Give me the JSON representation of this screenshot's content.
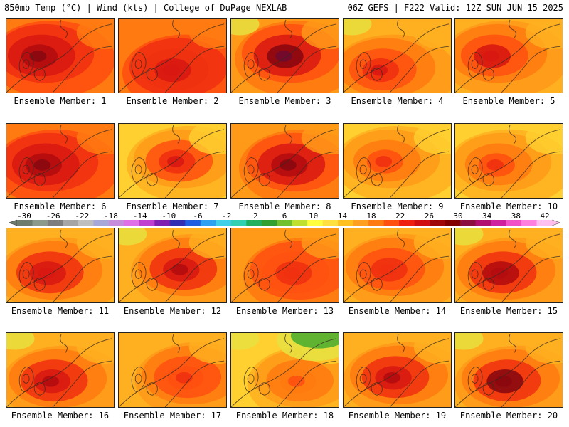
{
  "header": {
    "left_title": "850mb Temp (°C) | Wind (kts) | College of DuPage NEXLAB",
    "right_title": "06Z GEFS | F222 Valid: 12Z SUN JUN 15 2025"
  },
  "members": [
    {
      "label": "Ensemble Member: 1",
      "base": 24,
      "hot": 30,
      "cool": 0
    },
    {
      "label": "Ensemble Member: 2",
      "base": 24,
      "hot": 27,
      "cool": 0
    },
    {
      "label": "Ensemble Member: 3",
      "base": 23,
      "hot": 32,
      "cool": 1
    },
    {
      "label": "Ensemble Member: 4",
      "base": 21,
      "hot": 26,
      "cool": 1
    },
    {
      "label": "Ensemble Member: 5",
      "base": 20,
      "hot": 27,
      "cool": 0
    },
    {
      "label": "Ensemble Member: 6",
      "base": 24,
      "hot": 30,
      "cool": 0
    },
    {
      "label": "Ensemble Member: 7",
      "base": 19,
      "hot": 26,
      "cool": 0
    },
    {
      "label": "Ensemble Member: 8",
      "base": 22,
      "hot": 30,
      "cool": 0
    },
    {
      "label": "Ensemble Member: 9",
      "base": 19,
      "hot": 24,
      "cool": 0
    },
    {
      "label": "Ensemble Member: 10",
      "base": 18,
      "hot": 24,
      "cool": 0
    },
    {
      "label": "Ensemble Member: 11",
      "base": 21,
      "hot": 27,
      "cool": 0
    },
    {
      "label": "Ensemble Member: 12",
      "base": 21,
      "hot": 28,
      "cool": 1
    },
    {
      "label": "Ensemble Member: 13",
      "base": 22,
      "hot": 25,
      "cool": 0
    },
    {
      "label": "Ensemble Member: 14",
      "base": 21,
      "hot": 25,
      "cool": 0
    },
    {
      "label": "Ensemble Member: 15",
      "base": 21,
      "hot": 29,
      "cool": 1
    },
    {
      "label": "Ensemble Member: 16",
      "base": 21,
      "hot": 28,
      "cool": 1
    },
    {
      "label": "Ensemble Member: 17",
      "base": 20,
      "hot": 24,
      "cool": 0
    },
    {
      "label": "Ensemble Member: 18",
      "base": 19,
      "hot": 22,
      "cool": 2
    },
    {
      "label": "Ensemble Member: 19",
      "base": 21,
      "hot": 28,
      "cool": 0
    },
    {
      "label": "Ensemble Member: 20",
      "base": 20,
      "hot": 31,
      "cool": 1
    }
  ],
  "colorbar": {
    "tick_labels": [
      "-30",
      "-26",
      "-22",
      "-18",
      "-14",
      "-10",
      "-6",
      "-2",
      "2",
      "6",
      "10",
      "14",
      "18",
      "22",
      "26",
      "30",
      "34",
      "38",
      "42"
    ],
    "colors": [
      "#6e7c6e",
      "#8c9a8c",
      "#7d7d7d",
      "#a5a5a5",
      "#bfbfbf",
      "#a8a8d8",
      "#c78cdb",
      "#e070e8",
      "#c040d0",
      "#8020b0",
      "#3030b0",
      "#2060e0",
      "#30a0f0",
      "#40d0e8",
      "#30d0b0",
      "#20b060",
      "#30a030",
      "#70c030",
      "#c0e030",
      "#ffff40",
      "#ffe040",
      "#ffc020",
      "#ffa020",
      "#ff7a10",
      "#ff5010",
      "#f02010",
      "#d01010",
      "#a00808",
      "#800000",
      "#8a1040",
      "#b01070",
      "#d020a0",
      "#f050c8",
      "#ff80e0",
      "#ffc0f0"
    ]
  },
  "palette": {
    "t14": "#ffd030",
    "t16": "#ffb020",
    "t18": "#ff9a18",
    "t20": "#ff7a10",
    "t22": "#ff5010",
    "t24": "#f03010",
    "t26": "#d81812",
    "t28": "#b40c10",
    "t30": "#8a0810",
    "t32": "#700a30",
    "cool1": "#e8e040",
    "cool2": "#58b030"
  }
}
